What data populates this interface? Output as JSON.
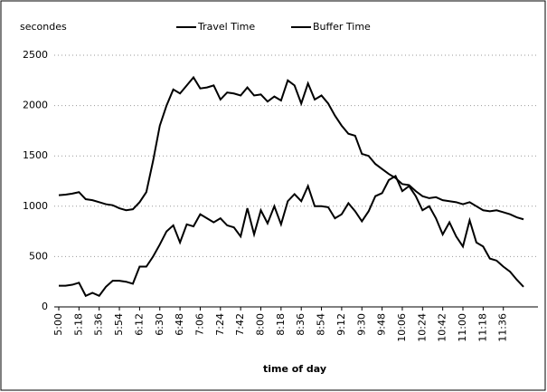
{
  "chart_data": {
    "type": "line",
    "y_label": "secondes",
    "x_label": "time of day",
    "categories": [
      "5:00",
      null,
      null,
      "5:18",
      null,
      null,
      "5:36",
      null,
      null,
      "5:54",
      null,
      null,
      "6:12",
      null,
      null,
      "6:30",
      null,
      null,
      "6:48",
      null,
      null,
      "7:06",
      null,
      null,
      "7:24",
      null,
      null,
      "7:42",
      null,
      null,
      "8:00",
      null,
      null,
      "8:18",
      null,
      null,
      "8:36",
      null,
      null,
      "8:54",
      null,
      null,
      "9:12",
      null,
      null,
      "9:30",
      null,
      null,
      "9:48",
      null,
      null,
      "10:06",
      null,
      null,
      "10:24",
      null,
      null,
      "10:42",
      null,
      null,
      "11:00",
      null,
      null,
      "11:18",
      null,
      null,
      "11:36",
      null,
      null,
      null
    ],
    "series": [
      {
        "name": "Travel Time",
        "color": "#000000",
        "values": [
          1110,
          1115,
          1125,
          1140,
          1070,
          1060,
          1040,
          1020,
          1010,
          980,
          960,
          970,
          1040,
          1140,
          1450,
          1800,
          2000,
          2160,
          2120,
          2200,
          2280,
          2170,
          2180,
          2200,
          2060,
          2130,
          2120,
          2100,
          2180,
          2100,
          2110,
          2040,
          2090,
          2050,
          2250,
          2200,
          2020,
          2220,
          2060,
          2100,
          2020,
          1900,
          1800,
          1720,
          1700,
          1520,
          1500,
          1420,
          1370,
          1320,
          1280,
          1220,
          1210,
          1150,
          1100,
          1080,
          1090,
          1060,
          1050,
          1040,
          1020,
          1040,
          1000,
          960,
          950,
          960,
          940,
          920,
          890,
          870
        ]
      },
      {
        "name": "Buffer Time",
        "color": "#000000",
        "values": [
          210,
          210,
          220,
          240,
          110,
          140,
          110,
          200,
          260,
          260,
          250,
          230,
          400,
          400,
          500,
          620,
          750,
          810,
          640,
          820,
          800,
          920,
          880,
          840,
          880,
          810,
          790,
          700,
          980,
          720,
          960,
          830,
          1000,
          820,
          1050,
          1120,
          1050,
          1200,
          1000,
          1000,
          990,
          880,
          920,
          1030,
          950,
          850,
          950,
          1100,
          1130,
          1260,
          1300,
          1150,
          1200,
          1100,
          960,
          1000,
          880,
          720,
          840,
          700,
          600,
          860,
          640,
          600,
          480,
          460,
          400,
          350,
          270,
          200
        ]
      }
    ],
    "ylim": [
      0,
      2500
    ],
    "yticks": [
      0,
      500,
      1000,
      1500,
      2000,
      2500
    ],
    "grid": true
  }
}
